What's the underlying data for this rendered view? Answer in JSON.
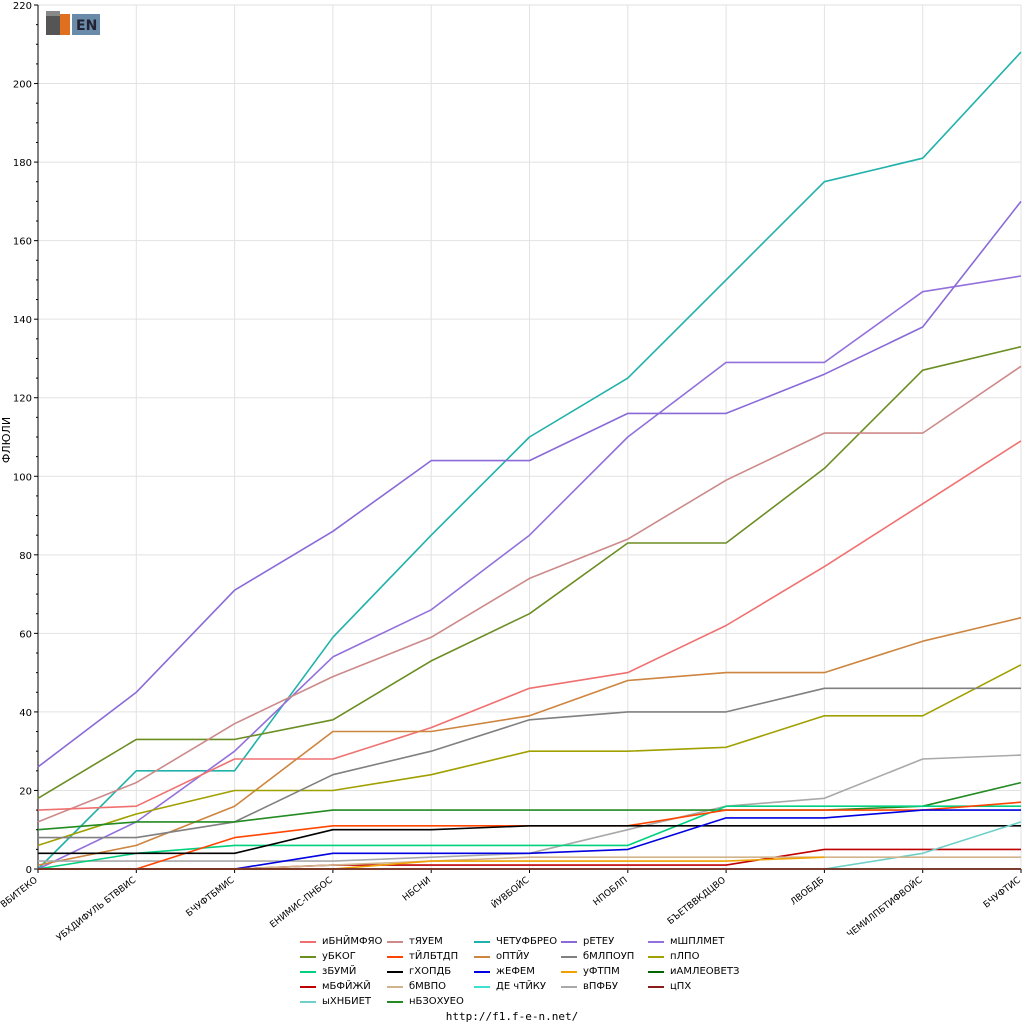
{
  "logo": {
    "text": "F1EN"
  },
  "footer": {
    "url": "http://f1.f-e-n.net/"
  },
  "chart_data": {
    "type": "line",
    "ylabel": "ФЛЮЛИ",
    "xlabel": "",
    "ylim": [
      0,
      220
    ],
    "yticks": [
      0,
      20,
      40,
      60,
      80,
      100,
      120,
      140,
      160,
      180,
      200,
      220
    ],
    "grid": true,
    "legend_position": "bottom",
    "categories": [
      "ВБИТЕКО",
      "УБХДИФУЛЬ БТВВИС",
      "БЧУФТБМИС",
      "ЕНИМИС-ПНБОС",
      "НБСНИ",
      "ЙУВБОЙС",
      "НПОБЛП",
      "БЪЕТВВКДЦВО",
      "ЛВОБДБ",
      "ЧЕМИЛПБТИФВОЙС",
      "БЧУФТИС"
    ],
    "series": [
      {
        "name": "ЧЕТУФБРЕО",
        "color": "#20b2aa",
        "values": [
          0,
          25,
          25,
          59,
          85,
          110,
          125,
          150,
          175,
          181,
          208
        ]
      },
      {
        "name": "мШПЛМЕТ",
        "color": "#9370db",
        "values": [
          0,
          12,
          30,
          54,
          66,
          85,
          110,
          129,
          129,
          147,
          151
        ]
      },
      {
        "name": "рЕТЕУ",
        "color": "#8a6ad8",
        "values": [
          26,
          45,
          71,
          86,
          104,
          104,
          116,
          116,
          126,
          138,
          170
        ]
      },
      {
        "name": "уБКОГ",
        "color": "#6b8e23",
        "values": [
          18,
          33,
          33,
          38,
          53,
          65,
          83,
          83,
          102,
          127,
          133
        ]
      },
      {
        "name": "тЯУЕМ",
        "color": "#cd8a8a",
        "values": [
          12,
          22,
          37,
          49,
          59,
          74,
          84,
          99,
          111,
          111,
          128
        ]
      },
      {
        "name": "иБНЙМФЯО",
        "color": "#f07070",
        "values": [
          15,
          16,
          28,
          28,
          36,
          46,
          50,
          62,
          77,
          93,
          109
        ]
      },
      {
        "name": "оПТЙУ",
        "color": "#cd853f",
        "values": [
          1,
          6,
          16,
          35,
          35,
          39,
          48,
          50,
          50,
          58,
          64
        ]
      },
      {
        "name": "пЛПО",
        "color": "#a0a000",
        "values": [
          6,
          14,
          20,
          20,
          24,
          30,
          30,
          31,
          39,
          39,
          52
        ]
      },
      {
        "name": "бМЛПОУП",
        "color": "#808080",
        "values": [
          8,
          8,
          12,
          24,
          30,
          38,
          40,
          40,
          46,
          46,
          46
        ]
      },
      {
        "name": "вПФБУ",
        "color": "#a9a9a9",
        "values": [
          2,
          2,
          2,
          2,
          3,
          4,
          10,
          16,
          18,
          28,
          29
        ]
      },
      {
        "name": "нБЗОХУЕО",
        "color": "#228b22",
        "values": [
          10,
          12,
          12,
          15,
          15,
          15,
          15,
          15,
          15,
          16,
          22
        ]
      },
      {
        "name": "зБУМЙ",
        "color": "#00d080",
        "values": [
          0,
          4,
          6,
          6,
          6,
          6,
          6,
          16,
          16,
          16,
          16
        ]
      },
      {
        "name": "тЙЛБТДП",
        "color": "#ff4500",
        "values": [
          0,
          0,
          8,
          11,
          11,
          11,
          11,
          15,
          15,
          15,
          17
        ]
      },
      {
        "name": "гХОПДБ",
        "color": "#000000",
        "values": [
          4,
          4,
          4,
          10,
          10,
          11,
          11,
          11,
          11,
          11,
          11
        ]
      },
      {
        "name": "жЕФЕМ",
        "color": "#0000e0",
        "values": [
          0,
          0,
          0,
          4,
          4,
          4,
          5,
          13,
          13,
          15,
          15
        ]
      },
      {
        "name": "мБФЙЖЙ",
        "color": "#c00000",
        "values": [
          0,
          0,
          0,
          1,
          1,
          1,
          1,
          1,
          5,
          5,
          5
        ]
      },
      {
        "name": "ыХНБИЕТ",
        "color": "#6ed0c8",
        "values": [
          null,
          null,
          null,
          null,
          null,
          null,
          null,
          null,
          0,
          4,
          12
        ]
      },
      {
        "name": "бМВПО",
        "color": "#d2b48c",
        "values": [
          0,
          0,
          0,
          1,
          2,
          3,
          3,
          3,
          3,
          3,
          3
        ]
      },
      {
        "name": "уФТПМ",
        "color": "#f0a000",
        "values": [
          0,
          0,
          0,
          0,
          2,
          2,
          2,
          2,
          3,
          null,
          null
        ]
      },
      {
        "name": "ДЕ чТЙКУ",
        "color": "#40e0d0",
        "values": [
          0,
          0,
          0,
          0,
          0,
          0,
          0,
          0,
          0,
          0,
          0
        ]
      },
      {
        "name": "иАМЛЕОВЕТЗ",
        "color": "#006400",
        "values": [
          0,
          0,
          0,
          0,
          0,
          0,
          0,
          0,
          0,
          0,
          0
        ]
      },
      {
        "name": "цПХ",
        "color": "#8b1a1a",
        "values": [
          0,
          0,
          0,
          0,
          0,
          0,
          0,
          0,
          0,
          0,
          0
        ]
      }
    ],
    "legend_order": [
      "иБНЙМФЯО",
      "тЯУЕМ",
      "ЧЕТУФБРЕО",
      "рЕТЕУ",
      "мШПЛМЕТ",
      "уБКОГ",
      "тЙЛБТДП",
      "оПТЙУ",
      "бМЛПОУП",
      "пЛПО",
      "зБУМЙ",
      "гХОПДБ",
      "жЕФЕМ",
      "уФТПМ",
      "иАМЛЕОВЕТЗ",
      "мБФЙЖЙ",
      "бМВПО",
      "ДЕ чТЙКУ",
      "вПФБУ",
      "цПХ",
      "ыХНБИЕТ",
      "нБЗОХУЕО"
    ]
  }
}
